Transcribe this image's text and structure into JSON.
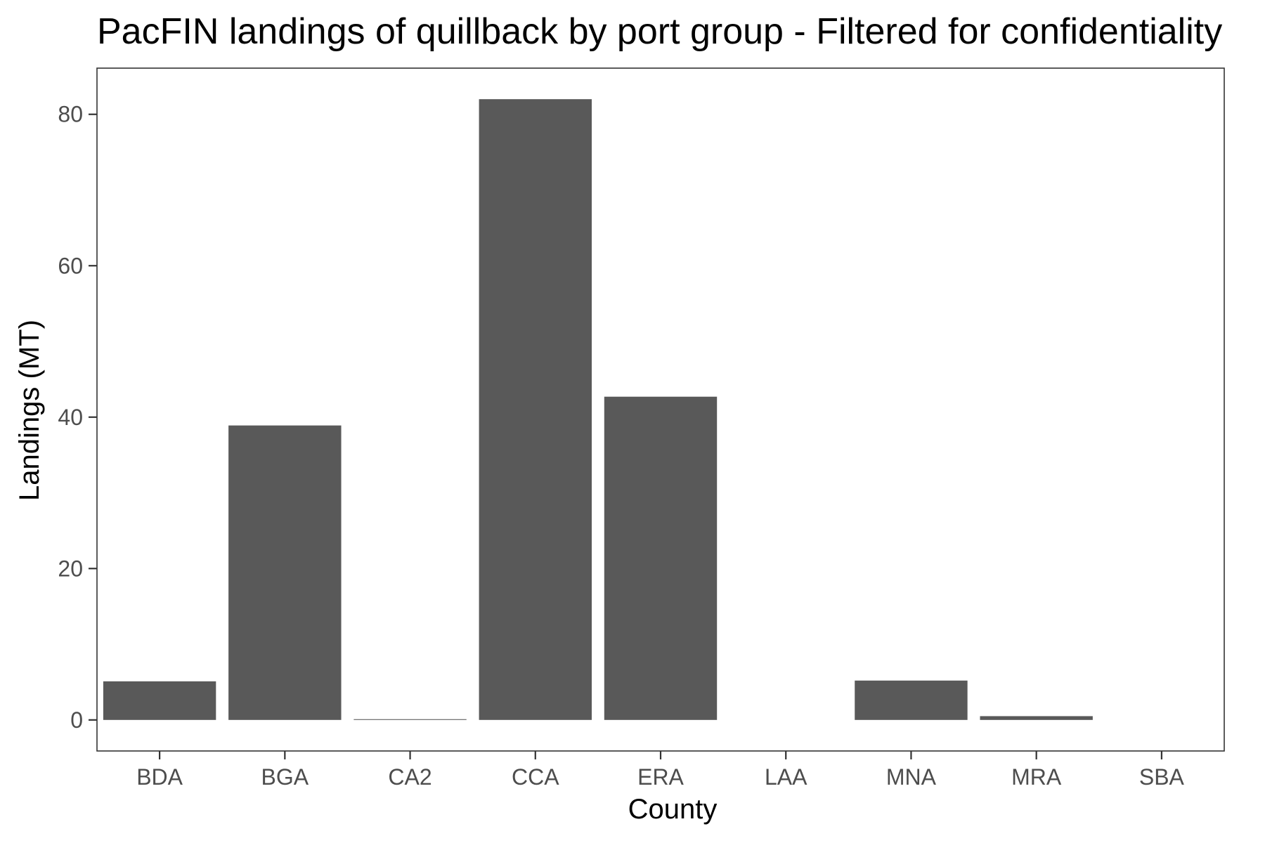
{
  "chart_data": {
    "type": "bar",
    "title": "PacFIN landings of quillback by port group - Filtered for confidentiality",
    "xlabel": "County",
    "ylabel": "Landings (MT)",
    "categories": [
      "BDA",
      "BGA",
      "CA2",
      "CCA",
      "ERA",
      "LAA",
      "MNA",
      "MRA",
      "SBA"
    ],
    "values": [
      5.1,
      38.9,
      0.1,
      82.0,
      42.7,
      0.0,
      5.2,
      0.5,
      0.0
    ],
    "ylim": [
      -4.1,
      86.1
    ],
    "yticks": [
      0,
      20,
      40,
      60,
      80
    ],
    "grid": false,
    "legend": "none",
    "colors": {
      "bar": "#595959",
      "panel_border": "#333333",
      "tick_label": "#4d4d4d"
    }
  }
}
